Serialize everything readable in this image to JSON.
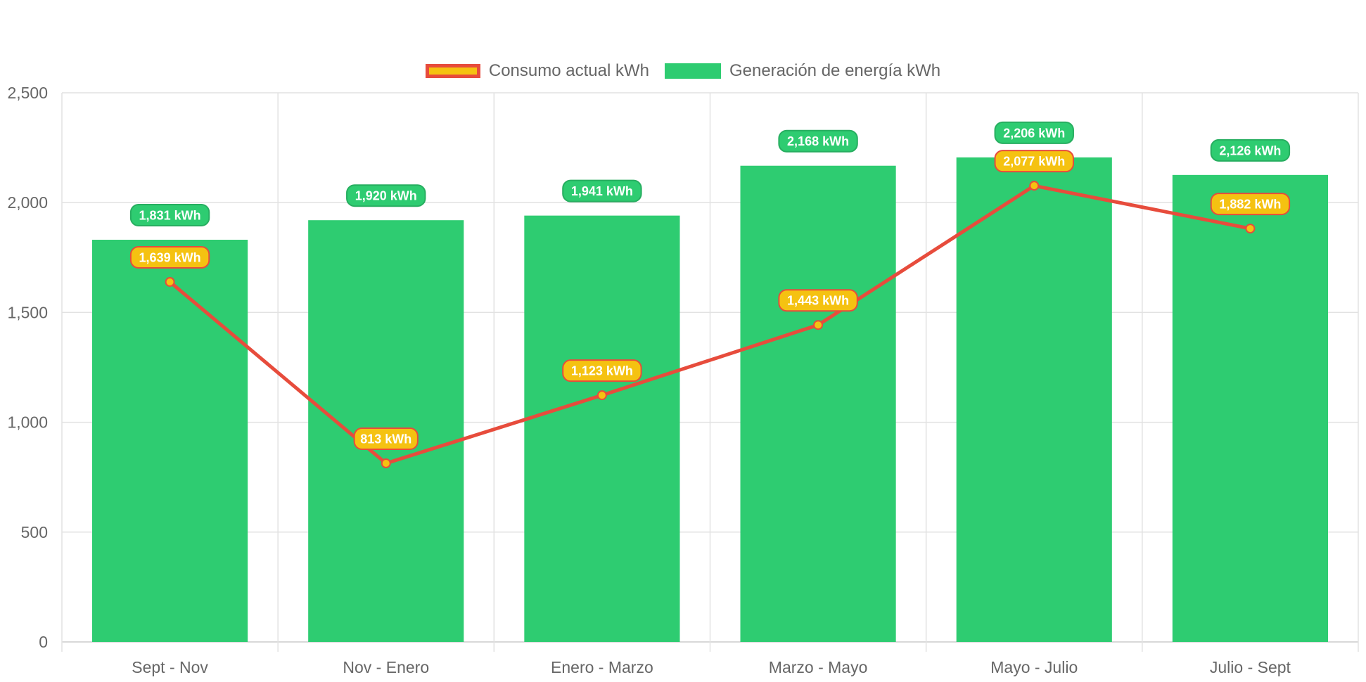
{
  "chart_data": {
    "type": "bar",
    "categories": [
      "Sept - Nov",
      "Nov - Enero",
      "Enero - Marzo",
      "Marzo - Mayo",
      "Mayo - Julio",
      "Julio - Sept"
    ],
    "series": [
      {
        "name": "Consumo actual kWh",
        "type": "line",
        "values": [
          1639,
          813,
          1123,
          1443,
          2077,
          1882
        ],
        "labels": [
          "1,639 kWh",
          "813 kWh",
          "1,123 kWh",
          "1,443 kWh",
          "2,077 kWh",
          "1,882 kWh"
        ],
        "line_color": "#e74c3c",
        "fill_color": "#f5c211"
      },
      {
        "name": "Generación de energía kWh",
        "type": "bar",
        "values": [
          1831,
          1920,
          1941,
          2168,
          2206,
          2126
        ],
        "labels": [
          "1,831 kWh",
          "1,920 kWh",
          "1,941 kWh",
          "2,168 kWh",
          "2,206 kWh",
          "2,126 kWh"
        ],
        "color": "#2ecc71"
      }
    ],
    "ylim": [
      0,
      2500
    ],
    "yticks": [
      0,
      500,
      1000,
      1500,
      2000,
      2500
    ],
    "ytick_labels": [
      "0",
      "500",
      "1,000",
      "1,500",
      "2,000",
      "2,500"
    ],
    "grid": true,
    "legend_position": "top-center",
    "title": "",
    "xlabel": "",
    "ylabel": ""
  }
}
